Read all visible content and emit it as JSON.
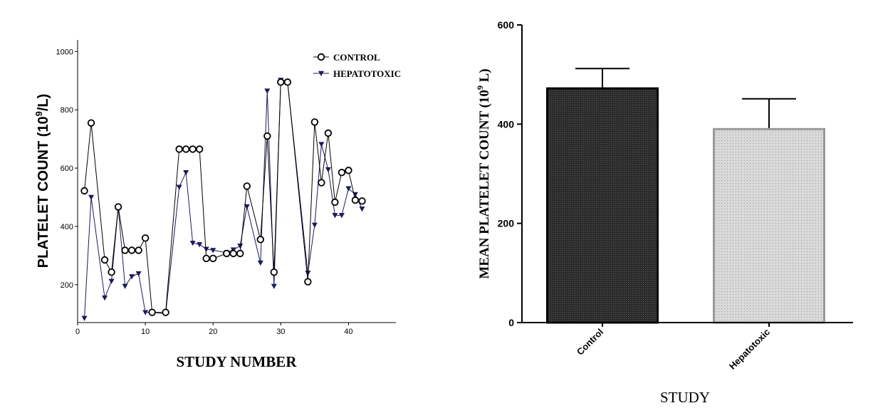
{
  "chart_data": [
    {
      "type": "line",
      "title": "",
      "xlabel": "STUDY NUMBER",
      "ylabel_main": "PLATELET COUNT  (10",
      "ylabel_sup": "9",
      "ylabel_end": "/L)",
      "xlim": [
        0,
        47
      ],
      "ylim": [
        70,
        1040
      ],
      "xticks": [
        0,
        10,
        20,
        30,
        40
      ],
      "yticks": [
        200,
        400,
        600,
        800,
        1000
      ],
      "legend_position": "top-right",
      "series": [
        {
          "name": "CONTROL",
          "marker": "circle",
          "color": "#000000",
          "x": [
            1,
            2,
            4,
            5,
            6,
            7,
            8,
            9,
            10,
            11,
            13,
            15,
            16,
            17,
            18,
            19,
            20,
            22,
            23,
            24,
            25,
            27,
            28,
            29,
            30,
            31,
            34,
            35,
            36,
            37,
            38,
            39,
            40,
            41,
            42
          ],
          "values": [
            522,
            755,
            285,
            243,
            467,
            318,
            318,
            318,
            360,
            105,
            105,
            665,
            665,
            665,
            665,
            290,
            290,
            307,
            307,
            307,
            538,
            355,
            710,
            243,
            895,
            895,
            210,
            758,
            550,
            720,
            483,
            585,
            592,
            490,
            487
          ]
        },
        {
          "name": "HEPATOTOXIC",
          "marker": "triangle-down",
          "color": "#1a1a5e",
          "x": [
            1,
            2,
            4,
            5,
            6,
            7,
            8,
            9,
            10,
            11,
            13,
            15,
            16,
            17,
            18,
            19,
            20,
            22,
            23,
            24,
            25,
            27,
            28,
            29,
            30,
            31,
            34,
            35,
            36,
            37,
            38,
            39,
            40,
            41,
            42
          ],
          "values": [
            85,
            500,
            155,
            212,
            465,
            195,
            228,
            238,
            105,
            105,
            100,
            535,
            585,
            343,
            338,
            322,
            318,
            310,
            320,
            333,
            468,
            275,
            865,
            195,
            902,
            895,
            240,
            405,
            682,
            595,
            438,
            438,
            530,
            510,
            460
          ]
        }
      ]
    },
    {
      "type": "bar",
      "title": "",
      "xlabel": "STUDY",
      "ylabel_main": "MEAN PLATELET COUNT  (10",
      "ylabel_sup": "9",
      "ylabel_end": " L)",
      "ylim": [
        0,
        600
      ],
      "yticks": [
        0,
        200,
        400,
        600
      ],
      "categories": [
        "Control",
        "Hepatotoxic"
      ],
      "values": [
        472,
        390
      ],
      "errors": [
        40,
        61
      ],
      "colors": [
        "#2b2b2b",
        "#d6d6d6"
      ],
      "edge_colors": [
        "#000000",
        "#999999"
      ]
    }
  ]
}
